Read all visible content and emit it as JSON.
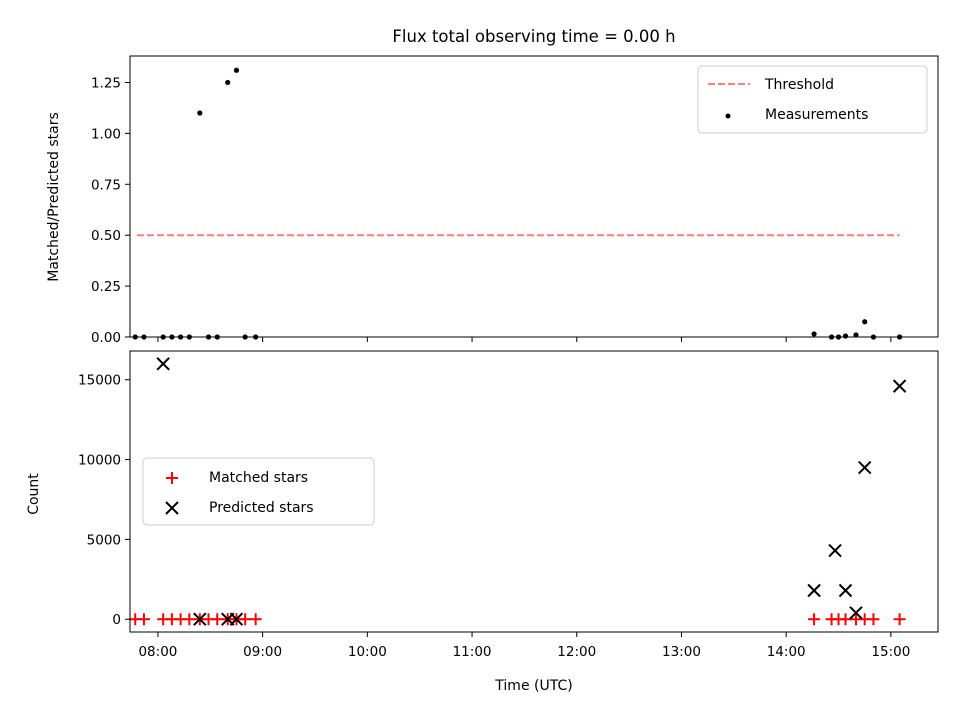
{
  "chart_data": [
    {
      "type": "scatter",
      "title": "Flux total observing time = 0.00 h",
      "xlabel": "",
      "ylabel": "Matched/Predicted stars",
      "xlim": [
        "07:44",
        "15:27"
      ],
      "ylim": [
        0,
        1.38
      ],
      "yticks": [
        "0.00",
        "0.25",
        "0.50",
        "0.75",
        "1.00",
        "1.25"
      ],
      "grid": false,
      "legend_position": "top-right",
      "threshold": {
        "name": "Threshold",
        "color": "#ff7f7f",
        "style": "dashed",
        "y": 0.5,
        "x_start": "07:48",
        "x_end": "15:05"
      },
      "series": [
        {
          "name": "Measurements",
          "color": "#000000",
          "marker": "dot",
          "x": [
            "07:47",
            "07:52",
            "08:03",
            "08:08",
            "08:13",
            "08:18",
            "08:24",
            "08:29",
            "08:34",
            "08:40",
            "08:45",
            "08:50",
            "08:56",
            "14:16",
            "14:26",
            "14:30",
            "14:34",
            "14:40",
            "14:45",
            "14:50",
            "15:05"
          ],
          "values": [
            0,
            0,
            0,
            0,
            0,
            0,
            1.1,
            0,
            0,
            1.25,
            1.31,
            0,
            0,
            0.015,
            0,
            0,
            0.005,
            0.01,
            0.075,
            0,
            0
          ]
        }
      ]
    },
    {
      "type": "scatter",
      "title": "",
      "xlabel": "Time (UTC)",
      "ylabel": "Count",
      "xlim": [
        "07:44",
        "15:27"
      ],
      "ylim": [
        -800,
        16800
      ],
      "xticks": [
        "08:00",
        "09:00",
        "10:00",
        "11:00",
        "12:00",
        "13:00",
        "14:00",
        "15:00"
      ],
      "yticks": [
        "0",
        "5000",
        "10000",
        "15000"
      ],
      "grid": false,
      "legend_position": "center-left",
      "series": [
        {
          "name": "Matched stars",
          "color": "#ff0000",
          "marker": "plus",
          "x": [
            "07:47",
            "07:52",
            "08:03",
            "08:08",
            "08:13",
            "08:18",
            "08:24",
            "08:29",
            "08:34",
            "08:40",
            "08:45",
            "08:50",
            "08:56",
            "14:16",
            "14:26",
            "14:30",
            "14:34",
            "14:40",
            "14:45",
            "14:50",
            "15:05"
          ],
          "values": [
            0,
            0,
            0,
            0,
            0,
            0,
            0,
            0,
            0,
            0,
            0,
            0,
            0,
            0,
            0,
            0,
            0,
            0,
            0,
            0,
            0
          ]
        },
        {
          "name": "Predicted stars",
          "color": "#000000",
          "marker": "x",
          "x": [
            "08:03",
            "08:24",
            "08:40",
            "08:45",
            "14:16",
            "14:28",
            "14:34",
            "14:40",
            "14:45",
            "15:05"
          ],
          "values": [
            16000,
            0,
            0,
            0,
            1800,
            4300,
            1800,
            400,
            9500,
            14600
          ]
        }
      ]
    }
  ]
}
